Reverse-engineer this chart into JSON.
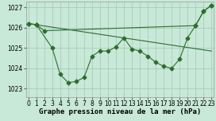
{
  "xlabel": "Graphe pression niveau de la mer (hPa)",
  "bg_color": "#c8e8d8",
  "grid_color": "#a0c8b8",
  "line_color": "#2d6e2d",
  "ylim": [
    1022.6,
    1027.3
  ],
  "xlim": [
    -0.3,
    23.3
  ],
  "yticks": [
    1023,
    1024,
    1025,
    1026,
    1027
  ],
  "xticks": [
    0,
    1,
    2,
    3,
    4,
    5,
    6,
    7,
    8,
    9,
    10,
    11,
    12,
    13,
    14,
    15,
    16,
    17,
    18,
    19,
    20,
    21,
    22,
    23
  ],
  "line1_x": [
    0,
    1,
    3,
    4,
    5,
    6,
    7,
    8,
    9,
    10,
    11,
    12,
    13,
    14,
    15,
    16,
    17,
    18,
    19,
    20,
    21,
    22,
    23
  ],
  "line1_y": [
    1026.2,
    1026.15,
    1025.0,
    1023.7,
    1023.3,
    1023.35,
    1023.55,
    1024.6,
    1024.85,
    1024.85,
    1025.05,
    1025.5,
    1024.95,
    1024.85,
    1024.6,
    1024.3,
    1024.1,
    1024.0,
    1024.45,
    1025.5,
    1026.1,
    1026.8,
    1027.1
  ],
  "line2_x": [
    0,
    1,
    2,
    21,
    22,
    23
  ],
  "line2_y": [
    1026.2,
    1026.15,
    1025.85,
    1026.1,
    1026.8,
    1027.1
  ],
  "line3_x": [
    0,
    23
  ],
  "line3_y": [
    1026.2,
    1024.85
  ],
  "font_size_xlabel": 6.5,
  "tick_fontsize": 5.5,
  "marker_size": 2.5,
  "line_width": 0.8
}
